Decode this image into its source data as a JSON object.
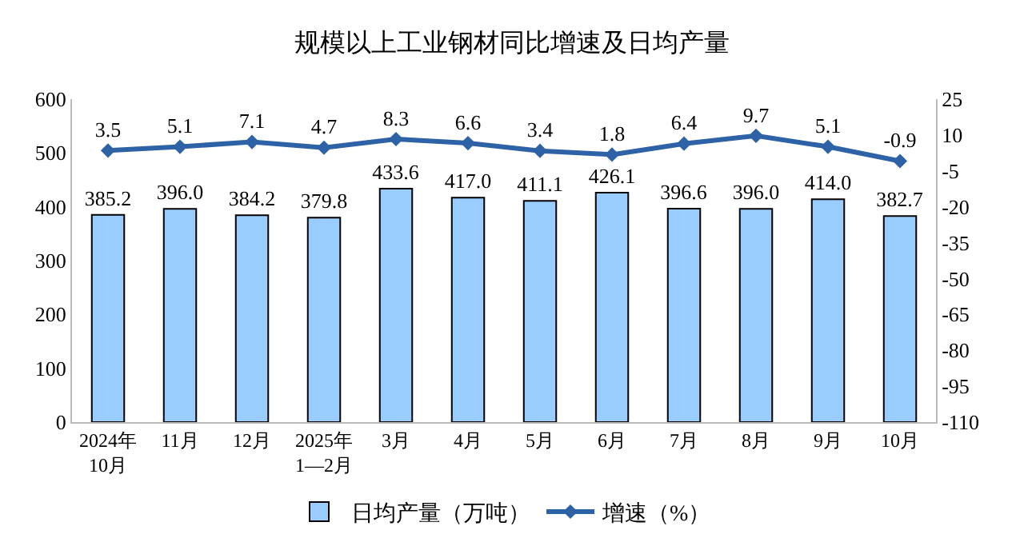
{
  "chart_data": {
    "type": "bar",
    "title": "规模以上工业钢材同比增速及日均产量",
    "categories": [
      "2024年\n10月",
      "11月",
      "12月",
      "2025年\n1—2月",
      "3月",
      "4月",
      "5月",
      "6月",
      "7月",
      "8月",
      "9月",
      "10月"
    ],
    "series": [
      {
        "name": "日均产量（万吨）",
        "color": "#99ccff",
        "values": [
          385.2,
          396.0,
          384.2,
          379.8,
          433.6,
          417.0,
          411.1,
          426.1,
          396.6,
          396.0,
          414.0,
          382.7
        ],
        "value_labels": [
          "385.2",
          "396.0",
          "384.2",
          "379.8",
          "433.6",
          "417.0",
          "411.1",
          "426.1",
          "396.6",
          "396.0",
          "414.0",
          "382.7"
        ]
      },
      {
        "name": "增速（%）",
        "type": "line",
        "axis": "y2",
        "color": "#2e62a6",
        "marker": "diamond",
        "values": [
          3.5,
          5.1,
          7.1,
          4.7,
          8.3,
          6.6,
          3.4,
          1.8,
          6.4,
          9.7,
          5.1,
          -0.9
        ],
        "value_labels": [
          "3.5",
          "5.1",
          "7.1",
          "4.7",
          "8.3",
          "6.6",
          "3.4",
          "1.8",
          "6.4",
          "9.7",
          "5.1",
          "-0.9"
        ]
      }
    ],
    "ylim": [
      0,
      600
    ],
    "yticks": [
      0,
      100,
      200,
      300,
      400,
      500,
      600
    ],
    "y2lim": [
      -110,
      25
    ],
    "y2ticks": [
      -110,
      -95,
      -80,
      -65,
      -50,
      -35,
      -20,
      -5,
      10,
      25
    ],
    "legend": "bottom"
  }
}
